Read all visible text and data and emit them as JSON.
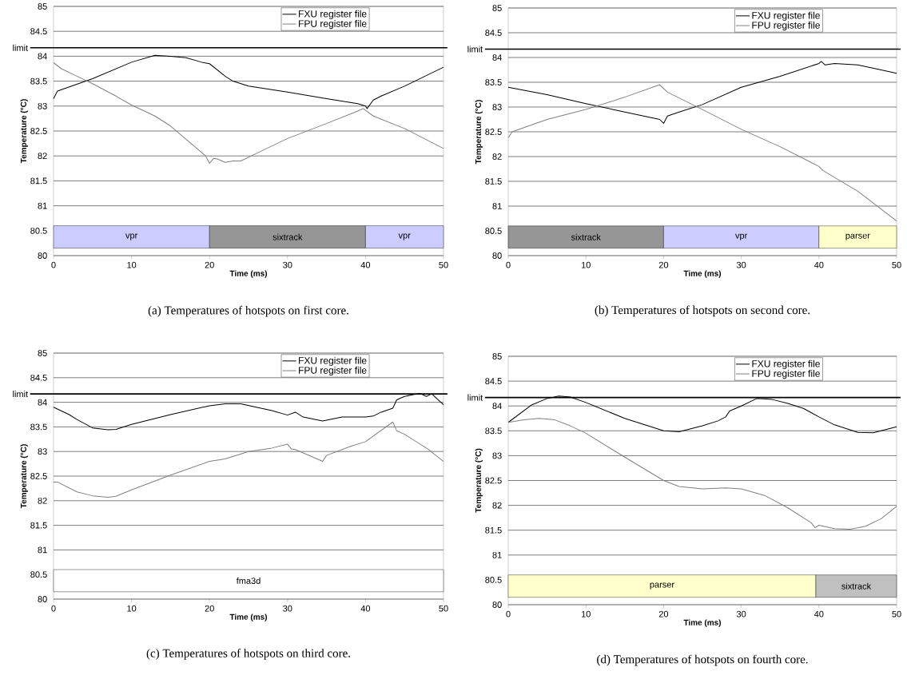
{
  "chart_data": [
    {
      "type": "line",
      "title": "(a) Temperatures of hotspots on first core.",
      "xlabel": "Time (ms)",
      "ylabel": "Temperature (°C)",
      "xlim": [
        0,
        50
      ],
      "ylim": [
        80,
        85
      ],
      "xticks": [
        0,
        10,
        20,
        30,
        40,
        50
      ],
      "yticks": [
        80,
        80.5,
        81,
        81.5,
        82,
        82.5,
        83,
        83.5,
        84,
        84.5,
        85
      ],
      "grid": "y",
      "legend": "top right",
      "ref_lines": [
        {
          "axis": "y",
          "value": 84.17,
          "label": "limit",
          "color": "#000000"
        }
      ],
      "bands": [
        {
          "axis": "x",
          "from": 0,
          "to": 20,
          "label": "vpr",
          "color": "#ccccff"
        },
        {
          "axis": "x",
          "from": 20,
          "to": 40,
          "label": "sixtrack",
          "color": "#969696"
        },
        {
          "axis": "x",
          "from": 40,
          "to": 50,
          "label": "vpr",
          "color": "#ccccff"
        }
      ],
      "series": [
        {
          "name": "FXU register file",
          "color": "#000000",
          "x": [
            0,
            0.5,
            5,
            10,
            13,
            15,
            17,
            19,
            20,
            22,
            23,
            25,
            30,
            35,
            39,
            40,
            40.2,
            41,
            42,
            45,
            50
          ],
          "values": [
            83.15,
            83.3,
            83.55,
            83.88,
            84.02,
            84.0,
            83.97,
            83.88,
            83.85,
            83.6,
            83.5,
            83.4,
            83.28,
            83.15,
            83.05,
            83.0,
            82.95,
            83.12,
            83.2,
            83.4,
            83.78
          ]
        },
        {
          "name": "FPU register file",
          "color": "#808080",
          "x": [
            0,
            1,
            3,
            5,
            8,
            10,
            13,
            15,
            18,
            19.5,
            20,
            20.5,
            21,
            22,
            23,
            24,
            26,
            30,
            35,
            39,
            39.7,
            41,
            45,
            50
          ],
          "values": [
            83.87,
            83.75,
            83.6,
            83.45,
            83.2,
            83.02,
            82.8,
            82.6,
            82.2,
            82.0,
            81.85,
            81.95,
            81.94,
            81.87,
            81.9,
            81.9,
            82.05,
            82.35,
            82.65,
            82.9,
            82.95,
            82.8,
            82.55,
            82.15
          ]
        }
      ]
    },
    {
      "type": "line",
      "title": "(b) Temperatures of hotspots on second core.",
      "xlabel": "Time (ms)",
      "ylabel": "Temperature (°C)",
      "xlim": [
        0,
        50
      ],
      "ylim": [
        80,
        85
      ],
      "xticks": [
        0,
        10,
        20,
        30,
        40,
        50
      ],
      "yticks": [
        80,
        80.5,
        81,
        81.5,
        82,
        82.5,
        83,
        83.5,
        84,
        84.5,
        85
      ],
      "grid": "y",
      "legend": "top right",
      "ref_lines": [
        {
          "axis": "y",
          "value": 84.17,
          "label": "limit",
          "color": "#000000"
        }
      ],
      "bands": [
        {
          "axis": "x",
          "from": 0,
          "to": 20,
          "label": "sixtrack",
          "color": "#969696"
        },
        {
          "axis": "x",
          "from": 20,
          "to": 40,
          "label": "vpr",
          "color": "#ccccff"
        },
        {
          "axis": "x",
          "from": 40,
          "to": 50,
          "label": "parser",
          "color": "#ffffcc"
        }
      ],
      "series": [
        {
          "name": "FXU register file",
          "color": "#000000",
          "x": [
            0,
            5,
            10,
            15,
            19.5,
            20,
            20.5,
            22,
            25,
            30,
            35,
            40,
            40.3,
            40.8,
            42,
            45,
            48,
            50
          ],
          "values": [
            83.4,
            83.25,
            83.07,
            82.9,
            82.75,
            82.67,
            82.82,
            82.9,
            83.05,
            83.4,
            83.62,
            83.88,
            83.92,
            83.85,
            83.88,
            83.85,
            83.75,
            83.68
          ]
        },
        {
          "name": "FPU register file",
          "color": "#808080",
          "x": [
            0,
            0.5,
            5,
            10,
            15,
            19.5,
            20.5,
            25,
            30,
            35,
            40,
            40.5,
            45,
            50
          ],
          "values": [
            82.38,
            82.5,
            82.75,
            82.95,
            83.2,
            83.45,
            83.3,
            82.95,
            82.55,
            82.2,
            81.8,
            81.72,
            81.3,
            80.7
          ]
        }
      ]
    },
    {
      "type": "line",
      "title": "(c) Temperatures of hotspots on third core.",
      "xlabel": "Time (ms)",
      "ylabel": "Temperature (°C)",
      "xlim": [
        0,
        50
      ],
      "ylim": [
        80,
        85
      ],
      "xticks": [
        0,
        10,
        20,
        30,
        40,
        50
      ],
      "yticks": [
        80,
        80.5,
        81,
        81.5,
        82,
        82.5,
        83,
        83.5,
        84,
        84.5,
        85
      ],
      "grid": "y",
      "legend": "top right",
      "ref_lines": [
        {
          "axis": "y",
          "value": 84.17,
          "label": "limit",
          "color": "#000000"
        }
      ],
      "bands": [
        {
          "axis": "x",
          "from": 0,
          "to": 50,
          "label": "fma3d",
          "color": "#ffffff"
        }
      ],
      "series": [
        {
          "name": "FXU register file",
          "color": "#000000",
          "x": [
            0,
            2,
            3,
            5,
            7,
            8,
            10,
            15,
            20,
            22,
            24,
            26,
            28,
            30,
            31,
            32,
            34.5,
            37,
            40,
            41,
            42,
            43.5,
            44,
            45,
            46,
            47,
            47.8,
            48.5,
            50
          ],
          "values": [
            83.9,
            83.75,
            83.65,
            83.48,
            83.44,
            83.45,
            83.55,
            83.75,
            83.93,
            83.97,
            83.97,
            83.9,
            83.83,
            83.74,
            83.8,
            83.7,
            83.62,
            83.7,
            83.7,
            83.72,
            83.8,
            83.88,
            84.05,
            84.12,
            84.15,
            84.18,
            84.12,
            84.17,
            83.95
          ]
        },
        {
          "name": "FPU register file",
          "color": "#808080",
          "x": [
            0,
            0.5,
            3,
            5,
            7,
            8,
            10,
            15,
            20,
            22,
            25,
            28,
            30,
            30.5,
            31,
            34.5,
            35,
            38,
            40,
            43.5,
            44,
            45,
            48,
            50
          ],
          "values": [
            82.38,
            82.38,
            82.18,
            82.1,
            82.07,
            82.09,
            82.22,
            82.52,
            82.8,
            82.85,
            83.0,
            83.07,
            83.15,
            83.05,
            83.04,
            82.8,
            82.92,
            83.1,
            83.2,
            83.6,
            83.42,
            83.35,
            83.05,
            82.8
          ]
        }
      ]
    },
    {
      "type": "line",
      "title": "(d) Temperatures of hotspots on fourth core.",
      "xlabel": "Time (ms)",
      "ylabel": "Temperature (°C)",
      "xlim": [
        0,
        50
      ],
      "ylim": [
        80,
        85
      ],
      "xticks": [
        0,
        10,
        20,
        30,
        40,
        50
      ],
      "yticks": [
        80,
        80.5,
        81,
        81.5,
        82,
        82.5,
        83,
        83.5,
        84,
        84.5,
        85
      ],
      "grid": "y",
      "legend": "top right",
      "ref_lines": [
        {
          "axis": "y",
          "value": 84.17,
          "label": "limit",
          "color": "#000000"
        }
      ],
      "bands": [
        {
          "axis": "x",
          "from": 0,
          "to": 39.6,
          "label": "parser",
          "color": "#ffffcc"
        },
        {
          "axis": "x",
          "from": 39.6,
          "to": 50,
          "label": "sixtrack",
          "color": "#c0c0c0"
        }
      ],
      "series": [
        {
          "name": "FXU register file",
          "color": "#000000",
          "x": [
            0,
            3,
            5,
            6.5,
            8,
            10,
            15,
            20,
            22,
            25,
            27,
            28,
            28.5,
            30,
            32,
            34,
            36,
            38,
            40,
            42,
            45,
            47,
            50
          ],
          "values": [
            83.67,
            84.02,
            84.15,
            84.2,
            84.18,
            84.07,
            83.75,
            83.5,
            83.48,
            83.6,
            83.7,
            83.78,
            83.9,
            84.0,
            84.15,
            84.13,
            84.05,
            83.95,
            83.78,
            83.62,
            83.47,
            83.46,
            83.58
          ]
        },
        {
          "name": "FPU register file",
          "color": "#808080",
          "x": [
            0,
            2,
            4,
            6,
            8,
            10,
            15,
            20,
            22,
            25,
            28,
            30,
            33,
            36,
            39,
            39.5,
            40,
            42,
            44,
            46,
            48,
            50
          ],
          "values": [
            83.67,
            83.72,
            83.75,
            83.72,
            83.6,
            83.45,
            82.97,
            82.5,
            82.38,
            82.33,
            82.35,
            82.33,
            82.2,
            81.95,
            81.65,
            81.55,
            81.6,
            81.53,
            81.52,
            81.58,
            81.73,
            81.98
          ]
        }
      ]
    }
  ]
}
